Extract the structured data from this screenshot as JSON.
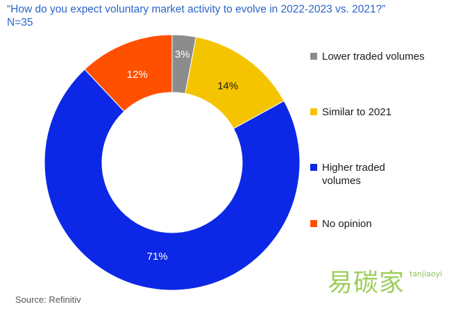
{
  "header": {
    "title": "“How do you expect voluntary market activity to evolve in 2022-2023 vs. 2021?”",
    "subtitle": "N=35"
  },
  "chart_data": {
    "type": "pie",
    "title": "“How do you expect voluntary market activity to evolve in 2022-2023 vs. 2021?”",
    "subtitle": "N=35",
    "donut": true,
    "legend_position": "right",
    "slices": [
      {
        "label": "Lower traded volumes",
        "value": 3,
        "display": "3%",
        "color": "#8c8c8c"
      },
      {
        "label": "Similar to 2021",
        "value": 14,
        "display": "14%",
        "color": "#f5c400"
      },
      {
        "label": "Higher traded volumes",
        "value": 71,
        "display": "71%",
        "color": "#0c28e6"
      },
      {
        "label": "No opinion",
        "value": 12,
        "display": "12%",
        "color": "#ff5000"
      }
    ]
  },
  "footer": {
    "source": "Source: Refinitiv"
  },
  "watermark": {
    "text_cn": "易碳家",
    "text_en": "tanjiaoyi"
  }
}
